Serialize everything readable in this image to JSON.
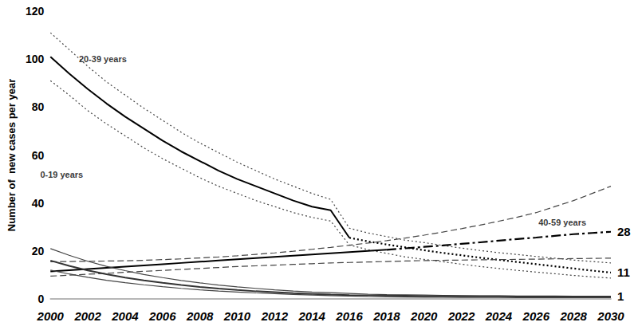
{
  "chart_data": {
    "type": "line",
    "y_label": "Number of  new cases per year",
    "x": [
      2000,
      2001,
      2002,
      2003,
      2004,
      2005,
      2006,
      2007,
      2008,
      2009,
      2010,
      2011,
      2012,
      2013,
      2014,
      2015,
      2016,
      2017,
      2018,
      2019,
      2020,
      2021,
      2022,
      2023,
      2024,
      2025,
      2026,
      2027,
      2028,
      2029,
      2030
    ],
    "xlim": [
      2000,
      2030
    ],
    "xticks": [
      2000,
      2002,
      2004,
      2006,
      2008,
      2010,
      2012,
      2014,
      2016,
      2018,
      2020,
      2022,
      2024,
      2026,
      2028,
      2030
    ],
    "ylim": [
      0,
      120
    ],
    "yticks": [
      0,
      20,
      40,
      60,
      80,
      100,
      120
    ],
    "grid": false,
    "series": [
      {
        "color": "#000000",
        "line_style": "solid",
        "values": [
          101,
          94,
          87.5,
          81.5,
          76,
          71,
          66,
          61.5,
          57.5,
          53.5,
          50,
          47,
          44,
          41,
          38.5,
          37,
          25.5,
          null,
          null,
          null,
          null,
          null,
          null,
          null,
          null,
          null,
          null,
          null,
          null,
          null,
          null
        ],
        "projected": {
          "line_style": "dotted",
          "values": [
            null,
            null,
            null,
            null,
            null,
            null,
            null,
            null,
            null,
            null,
            null,
            null,
            null,
            null,
            null,
            null,
            25.5,
            24,
            22.7,
            21.5,
            20.3,
            19.2,
            18.2,
            17.2,
            16.3,
            15.4,
            14.5,
            13.6,
            12.7,
            11.8,
            11
          ]
        },
        "upper": {
          "line_style": "dotted",
          "values": [
            111,
            104,
            97,
            90.5,
            85,
            79.5,
            74.5,
            69.5,
            65,
            61,
            57,
            53.5,
            50,
            47,
            44,
            41.5,
            29.5,
            27.5,
            26,
            24.5,
            23.5,
            22.3,
            21.2,
            20.2,
            19.3,
            18.5,
            17.7,
            17,
            16.2,
            15.6,
            15
          ]
        },
        "lower": {
          "line_style": "dotted",
          "values": [
            91,
            85,
            78.5,
            73,
            68,
            63,
            58.5,
            54.5,
            50.5,
            47,
            44,
            41,
            38.5,
            36,
            34,
            32.5,
            22.5,
            20.5,
            19,
            17.5,
            16.5,
            15.5,
            14.5,
            13.5,
            12.7,
            11.9,
            11.2,
            10.5,
            9.8,
            9.2,
            8.7
          ]
        }
      },
      {
        "color": "#000000",
        "line_style": "solid",
        "values": [
          11.5,
          12,
          12.5,
          13,
          13.5,
          14,
          14.5,
          15,
          15.5,
          16,
          16.5,
          17,
          17.5,
          18,
          18.5,
          19,
          19.5,
          20,
          20.5,
          null,
          null,
          null,
          null,
          null,
          null,
          null,
          null,
          null,
          null,
          null,
          null
        ],
        "projected": {
          "line_style": "dashdot",
          "values": [
            null,
            null,
            null,
            null,
            null,
            null,
            null,
            null,
            null,
            null,
            null,
            null,
            null,
            null,
            null,
            null,
            null,
            null,
            20.5,
            21.1,
            21.7,
            22.3,
            23,
            23.6,
            24.3,
            25,
            25.6,
            26.3,
            27,
            27.5,
            28
          ]
        },
        "upper": {
          "line_style": "dashed",
          "values": [
            15.5,
            15.6,
            15.7,
            15.8,
            15.9,
            16.1,
            16.4,
            16.7,
            17.1,
            17.5,
            18,
            18.6,
            19.2,
            19.9,
            20.7,
            21.5,
            22.4,
            23.3,
            24.3,
            25.4,
            26.6,
            27.9,
            29.3,
            30.8,
            32.4,
            34.1,
            36,
            38.5,
            41,
            44,
            47
          ]
        },
        "lower": {
          "line_style": "dashed",
          "values": [
            9.5,
            9.9,
            10.3,
            10.7,
            11.1,
            11.5,
            11.9,
            12.3,
            12.7,
            13.1,
            13.5,
            13.8,
            14.1,
            14.4,
            14.7,
            15,
            15.2,
            15.4,
            15.6,
            15.8,
            16,
            16.1,
            16.2,
            16.3,
            16.4,
            16.5,
            16.6,
            16.7,
            16.8,
            16.9,
            17
          ]
        }
      },
      {
        "color": "#333333",
        "line_style": "solid",
        "values": [
          16,
          13.8,
          11.9,
          10.3,
          8.9,
          7.7,
          6.7,
          5.8,
          5,
          4.3,
          3.7,
          3.2,
          2.8,
          2.4,
          2.1,
          1.8,
          1.6,
          1.5,
          1.4,
          1.3,
          1.2,
          1.2,
          1.1,
          1.1,
          1.1,
          1,
          1,
          1,
          1,
          1,
          1
        ],
        "upper": {
          "line_style": "solid",
          "values": [
            21,
            18.2,
            15.7,
            13.6,
            11.8,
            10.2,
            8.9,
            7.7,
            6.7,
            5.8,
            5,
            4.4,
            3.8,
            3.3,
            2.9,
            2.6,
            2.3,
            2,
            1.8,
            1.7,
            1.6,
            1.5,
            1.4,
            1.3,
            1.3,
            1.2,
            1.2,
            1.2,
            1.1,
            1.1,
            1.1
          ]
        },
        "lower": {
          "line_style": "solid",
          "values": [
            12,
            10.4,
            9,
            7.8,
            6.8,
            5.9,
            5.1,
            4.4,
            3.8,
            3.3,
            2.9,
            2.5,
            2.2,
            1.9,
            1.6,
            1.4,
            1.2,
            1,
            0.9,
            0.8,
            0.7,
            0.7,
            0.6,
            0.6,
            0.6,
            0.5,
            0.5,
            0.5,
            0.5,
            0.5,
            0.5
          ]
        }
      }
    ],
    "annotations": [
      {
        "text": "20-39 years",
        "x": 2002.8,
        "y": 100
      },
      {
        "text": "40-59 years",
        "x": 2027.4,
        "y": 32
      },
      {
        "text": "0-19 years",
        "x": 2000.6,
        "y": 52
      }
    ]
  }
}
